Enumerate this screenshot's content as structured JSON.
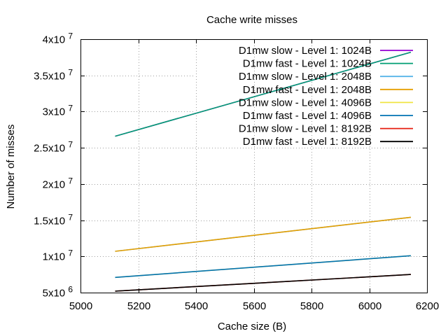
{
  "chart_data": {
    "type": "line",
    "title": "Cache write misses",
    "xlabel": "Cache size (B)",
    "ylabel": "Number of misses",
    "xlim": [
      5000,
      6200
    ],
    "ylim": [
      5000000,
      40000000
    ],
    "xticks": [
      5000,
      5200,
      5400,
      5600,
      5800,
      6000,
      6200
    ],
    "xtick_labels": [
      "5000",
      "5200",
      "5400",
      "5600",
      "5800",
      "6000",
      "6200"
    ],
    "yticks": [
      {
        "value": 5000000,
        "mantissa": "5x10",
        "exp": "6"
      },
      {
        "value": 10000000,
        "mantissa": "1x10",
        "exp": "7"
      },
      {
        "value": 15000000,
        "mantissa": "1.5x10",
        "exp": "7"
      },
      {
        "value": 20000000,
        "mantissa": "2x10",
        "exp": "7"
      },
      {
        "value": 25000000,
        "mantissa": "2.5x10",
        "exp": "7"
      },
      {
        "value": 30000000,
        "mantissa": "3x10",
        "exp": "7"
      },
      {
        "value": 35000000,
        "mantissa": "3.5x10",
        "exp": "7"
      },
      {
        "value": 40000000,
        "mantissa": "4x10",
        "exp": "7"
      }
    ],
    "grid": true,
    "legend_position": "top-right",
    "series": [
      {
        "name": "D1mw slow - Level 1: 1024B",
        "color": "#9400d3",
        "x": [
          5120,
          6144
        ],
        "y": [
          26600000,
          38200000
        ]
      },
      {
        "name": "D1mw fast - Level 1: 1024B",
        "color": "#009e73",
        "x": [
          5120,
          6144
        ],
        "y": [
          26600000,
          38200000
        ]
      },
      {
        "name": "D1mw slow - Level 1: 2048B",
        "color": "#56b4e9",
        "x": [
          5120,
          6144
        ],
        "y": [
          10700000,
          15400000
        ]
      },
      {
        "name": "D1mw fast - Level 1: 2048B",
        "color": "#e69f00",
        "x": [
          5120,
          6144
        ],
        "y": [
          10700000,
          15400000
        ]
      },
      {
        "name": "D1mw slow - Level 1: 4096B",
        "color": "#f0e442",
        "x": [
          5120,
          6144
        ],
        "y": [
          7100000,
          10100000
        ]
      },
      {
        "name": "D1mw fast - Level 1: 4096B",
        "color": "#0072b2",
        "x": [
          5120,
          6144
        ],
        "y": [
          7100000,
          10100000
        ]
      },
      {
        "name": "D1mw slow - Level 1: 8192B",
        "color": "#e51e10",
        "x": [
          5120,
          6144
        ],
        "y": [
          5200000,
          7500000
        ]
      },
      {
        "name": "D1mw fast - Level 1: 8192B",
        "color": "#000000",
        "x": [
          5120,
          6144
        ],
        "y": [
          5200000,
          7500000
        ]
      }
    ]
  }
}
